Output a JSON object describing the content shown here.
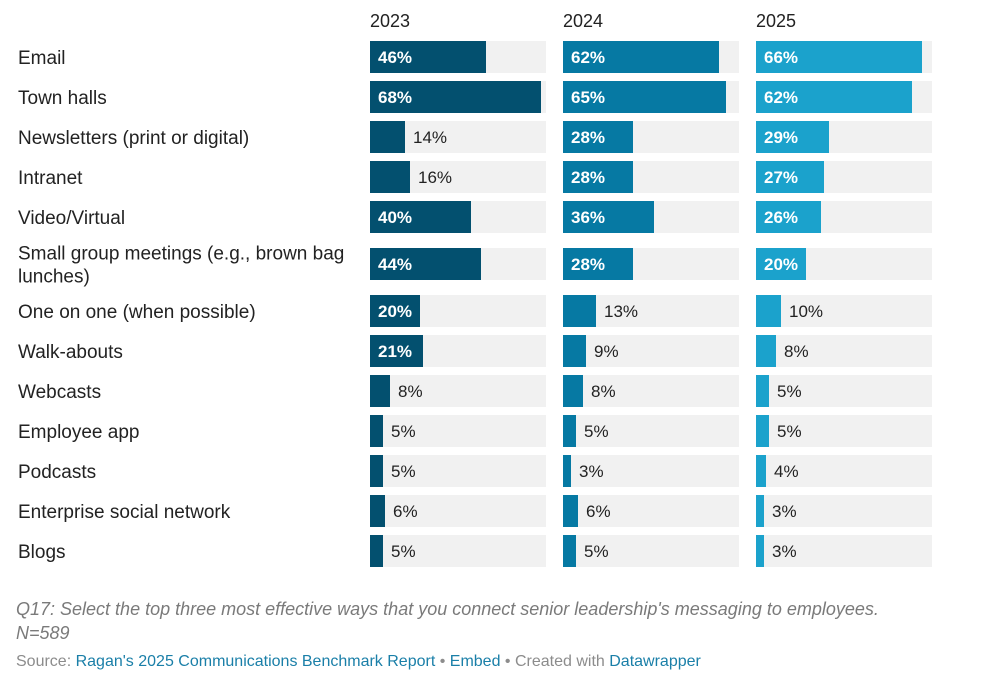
{
  "chart_data": {
    "type": "bar",
    "orientation": "horizontal",
    "layout": "small-multiples",
    "xlim": [
      0,
      70
    ],
    "categories": [
      "Email",
      "Town halls",
      "Newsletters (print or digital)",
      "Intranet",
      "Video/Virtual",
      "Small group meetings (e.g., brown bag lunches)",
      "One on one (when possible)",
      "Walk-abouts",
      "Webcasts",
      "Employee app",
      "Podcasts",
      "Enterprise social network",
      "Blogs"
    ],
    "category_lines": [
      [
        "Email"
      ],
      [
        "Town halls"
      ],
      [
        "Newsletters (print or digital)"
      ],
      [
        "Intranet"
      ],
      [
        "Video/Virtual"
      ],
      [
        "Small group meetings (e.g., brown bag",
        "lunches)"
      ],
      [
        "One on one (when possible)"
      ],
      [
        "Walk-abouts"
      ],
      [
        "Webcasts"
      ],
      [
        "Employee app"
      ],
      [
        "Podcasts"
      ],
      [
        "Enterprise social network"
      ],
      [
        "Blogs"
      ]
    ],
    "series": [
      {
        "name": "2023",
        "color": "#03506f",
        "values": [
          46,
          68,
          14,
          16,
          40,
          44,
          20,
          21,
          8,
          5,
          5,
          6,
          5
        ]
      },
      {
        "name": "2024",
        "color": "#0679a3",
        "values": [
          62,
          65,
          28,
          28,
          36,
          28,
          13,
          9,
          8,
          5,
          3,
          6,
          5
        ]
      },
      {
        "name": "2025",
        "color": "#1ba2cc",
        "values": [
          66,
          62,
          29,
          27,
          26,
          20,
          10,
          8,
          5,
          5,
          4,
          3,
          3
        ]
      }
    ],
    "value_suffix": "%",
    "track_color": "#f1f1f1",
    "grid": false,
    "legend": "none"
  },
  "notes": {
    "question": "Q17: Select the top three most effective ways that you connect senior leadership's messaging to employees.",
    "sample": "N=589"
  },
  "footer": {
    "source_prefix": "Source: ",
    "source_link": "Ragan's 2025 Communications Benchmark Report",
    "sep1": " • ",
    "embed_link": "Embed",
    "sep2": " • Created with ",
    "tool_link": "Datawrapper",
    "link_color": "#1a7fa8"
  }
}
